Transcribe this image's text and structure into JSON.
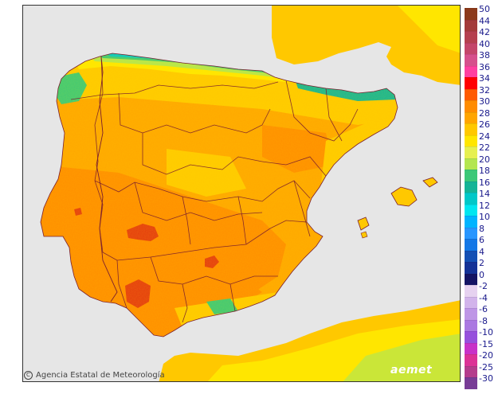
{
  "credit": {
    "text": "Agencia Estatal de Meteorología",
    "icon": "copyright-icon"
  },
  "brand": {
    "text": "aemet"
  },
  "legend": {
    "positive": [
      {
        "value": "50",
        "color": "#8c3a1a"
      },
      {
        "value": "44",
        "color": "#a33a3a"
      },
      {
        "value": "42",
        "color": "#b5404f"
      },
      {
        "value": "40",
        "color": "#c4466a"
      },
      {
        "value": "38",
        "color": "#d6508c"
      },
      {
        "value": "36",
        "color": "#ff40a0"
      },
      {
        "value": "34",
        "color": "#ff0000"
      },
      {
        "value": "32",
        "color": "#ff5a00"
      },
      {
        "value": "30",
        "color": "#ff8c00"
      },
      {
        "value": "28",
        "color": "#ffa500"
      },
      {
        "value": "26",
        "color": "#ffc800"
      },
      {
        "value": "24",
        "color": "#ffe600"
      },
      {
        "value": "22",
        "color": "#e6f050"
      },
      {
        "value": "20",
        "color": "#b4e650"
      },
      {
        "value": "18",
        "color": "#3cc878"
      },
      {
        "value": "16",
        "color": "#14b496"
      },
      {
        "value": "14",
        "color": "#00c8c8"
      },
      {
        "value": "12",
        "color": "#00e6f0"
      },
      {
        "value": "10",
        "color": "#00b4ff"
      },
      {
        "value": "8",
        "color": "#2896ff"
      },
      {
        "value": "6",
        "color": "#1478e6"
      },
      {
        "value": "4",
        "color": "#1450b4"
      },
      {
        "value": "2",
        "color": "#143296"
      },
      {
        "value": "0",
        "color": "#141464"
      }
    ],
    "negative": [
      {
        "value": "-2",
        "color": "#e6d2f0"
      },
      {
        "value": "-4",
        "color": "#d2b4eb"
      },
      {
        "value": "-6",
        "color": "#be96e6"
      },
      {
        "value": "-8",
        "color": "#aa78e1"
      },
      {
        "value": "-10",
        "color": "#9650dc"
      },
      {
        "value": "-15",
        "color": "#c832c8"
      },
      {
        "value": "-20",
        "color": "#dc3296"
      },
      {
        "value": "-25",
        "color": "#b43c8c"
      },
      {
        "value": "-30",
        "color": "#783c96"
      }
    ]
  },
  "colors": {
    "sea": "#e6e6e6",
    "land_base": "#ffa500",
    "hot": "#ff8c00",
    "very_hot": "#e53a10",
    "warm": "#ffc800",
    "mild": "#ffe600",
    "cool": "#b4e650",
    "coast_cool": "#3cc878",
    "cold": "#00c8c8",
    "border": "#7a1f2e"
  }
}
